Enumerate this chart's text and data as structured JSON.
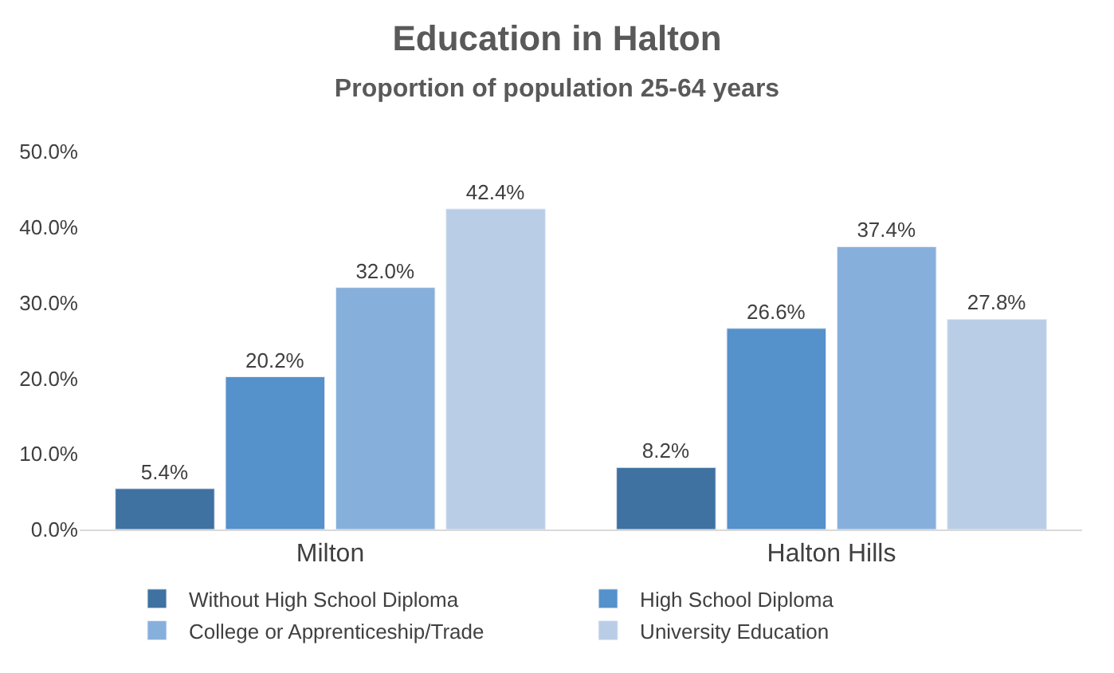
{
  "chart_data": {
    "type": "bar",
    "title": "Education in Halton",
    "subtitle": "Proportion of population 25-64 years",
    "categories": [
      "Milton",
      "Halton Hills"
    ],
    "series": [
      {
        "name": "Without High School Diploma",
        "color": "#3f71a1",
        "values": [
          5.4,
          8.2
        ],
        "value_labels": [
          "5.4%",
          "8.2%"
        ]
      },
      {
        "name": "High School Diploma",
        "color": "#5591cb",
        "values": [
          20.2,
          26.6
        ],
        "value_labels": [
          "20.2%",
          "26.6%"
        ]
      },
      {
        "name": "College or Apprenticeship/Trade",
        "color": "#87afdc",
        "values": [
          32.0,
          37.4
        ],
        "value_labels": [
          "32.0%",
          "37.4%"
        ]
      },
      {
        "name": "University Education",
        "color": "#b9cde7",
        "values": [
          42.4,
          27.8
        ],
        "value_labels": [
          "42.4%",
          "27.8%"
        ]
      }
    ],
    "ylim": [
      0,
      50
    ],
    "yticks": [
      {
        "value": 0,
        "label": "0.0%"
      },
      {
        "value": 10,
        "label": "10.0%"
      },
      {
        "value": 20,
        "label": "20.0%"
      },
      {
        "value": 30,
        "label": "30.0%"
      },
      {
        "value": 40,
        "label": "40.0%"
      },
      {
        "value": 50,
        "label": "50.0%"
      }
    ],
    "grid": false,
    "legend": "bottom"
  }
}
